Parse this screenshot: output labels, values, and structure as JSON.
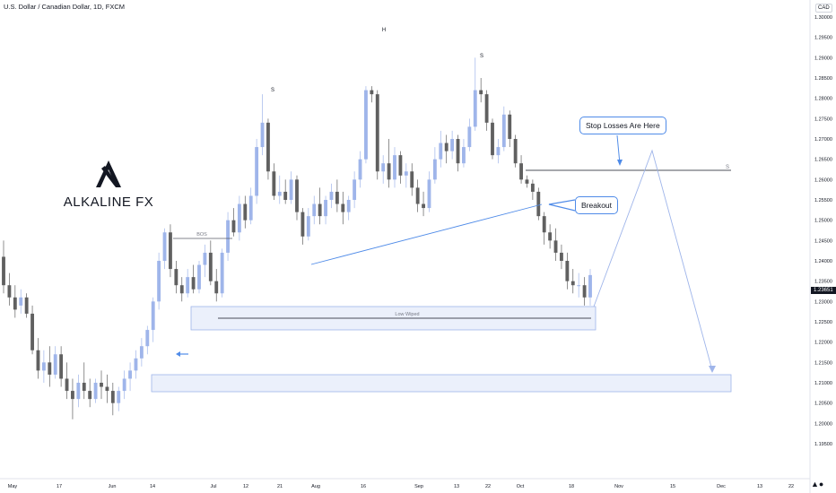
{
  "header": {
    "title": "U.S. Dollar / Canadian Dollar, 1D, FXCM",
    "currency": "CAD",
    "last_price": "1.23651"
  },
  "logo": {
    "text": "ALKALINE FX"
  },
  "callouts": {
    "stop_losses": "Stop Losses Are Here",
    "breakout": "Breakout"
  },
  "annotations": {
    "bos": "BOS",
    "low_wiped": "Low Wiped",
    "markers": [
      "S",
      "H",
      "S",
      "S"
    ]
  },
  "colors": {
    "bull": "#9fb5ea",
    "bear": "#606060",
    "accent": "#4f8be8",
    "zone": "rgba(210,222,246,0.45)",
    "zone_border": "#9fb5ea"
  },
  "chart_data": {
    "type": "candlestick",
    "symbol": "USD/CAD",
    "timeframe": "1D",
    "ylim": [
      1.1925,
      1.3025
    ],
    "y_ticks": [
      "1.30000",
      "1.29500",
      "1.29000",
      "1.28500",
      "1.28000",
      "1.27500",
      "1.27000",
      "1.26500",
      "1.26000",
      "1.25500",
      "1.25000",
      "1.24500",
      "1.24000",
      "1.23500",
      "1.23000",
      "1.22500",
      "1.22000",
      "1.21500",
      "1.21000",
      "1.20500",
      "1.20000",
      "1.19500"
    ],
    "x_ticks": [
      "May",
      "17",
      "Jun",
      "14",
      "Jul",
      "12",
      "21",
      "Aug",
      "16",
      "Sep",
      "13",
      "22",
      "Oct",
      "18",
      "Nov",
      "15",
      "Dec",
      "13",
      "22"
    ],
    "candles": [
      [
        1.241,
        1.245,
        1.232,
        1.234
      ],
      [
        1.234,
        1.237,
        1.229,
        1.231
      ],
      [
        1.231,
        1.234,
        1.226,
        1.228
      ],
      [
        1.229,
        1.233,
        1.227,
        1.231
      ],
      [
        1.231,
        1.232,
        1.226,
        1.227
      ],
      [
        1.227,
        1.229,
        1.217,
        1.218
      ],
      [
        1.218,
        1.221,
        1.211,
        1.213
      ],
      [
        1.213,
        1.218,
        1.21,
        1.215
      ],
      [
        1.215,
        1.219,
        1.209,
        1.212
      ],
      [
        1.212,
        1.219,
        1.211,
        1.217
      ],
      [
        1.217,
        1.219,
        1.209,
        1.211
      ],
      [
        1.211,
        1.215,
        1.206,
        1.208
      ],
      [
        1.208,
        1.211,
        1.201,
        1.206
      ],
      [
        1.206,
        1.212,
        1.204,
        1.21
      ],
      [
        1.21,
        1.215,
        1.206,
        1.208
      ],
      [
        1.208,
        1.211,
        1.204,
        1.206
      ],
      [
        1.206,
        1.211,
        1.205,
        1.21
      ],
      [
        1.21,
        1.213,
        1.206,
        1.209
      ],
      [
        1.209,
        1.212,
        1.205,
        1.208
      ],
      [
        1.208,
        1.21,
        1.202,
        1.205
      ],
      [
        1.205,
        1.209,
        1.203,
        1.208
      ],
      [
        1.208,
        1.213,
        1.206,
        1.211
      ],
      [
        1.211,
        1.215,
        1.208,
        1.213
      ],
      [
        1.213,
        1.218,
        1.211,
        1.216
      ],
      [
        1.216,
        1.221,
        1.214,
        1.219
      ],
      [
        1.219,
        1.224,
        1.217,
        1.223
      ],
      [
        1.223,
        1.231,
        1.22,
        1.23
      ],
      [
        1.23,
        1.242,
        1.228,
        1.24
      ],
      [
        1.24,
        1.248,
        1.238,
        1.247
      ],
      [
        1.247,
        1.249,
        1.236,
        1.238
      ],
      [
        1.238,
        1.24,
        1.232,
        1.234
      ],
      [
        1.234,
        1.236,
        1.23,
        1.232
      ],
      [
        1.232,
        1.238,
        1.231,
        1.236
      ],
      [
        1.236,
        1.239,
        1.232,
        1.233
      ],
      [
        1.233,
        1.24,
        1.232,
        1.239
      ],
      [
        1.239,
        1.244,
        1.236,
        1.242
      ],
      [
        1.242,
        1.245,
        1.234,
        1.235
      ],
      [
        1.235,
        1.238,
        1.23,
        1.232
      ],
      [
        1.232,
        1.243,
        1.231,
        1.242
      ],
      [
        1.242,
        1.252,
        1.24,
        1.25
      ],
      [
        1.25,
        1.253,
        1.246,
        1.247
      ],
      [
        1.247,
        1.256,
        1.245,
        1.254
      ],
      [
        1.254,
        1.256,
        1.248,
        1.25
      ],
      [
        1.25,
        1.258,
        1.249,
        1.256
      ],
      [
        1.256,
        1.27,
        1.254,
        1.268
      ],
      [
        1.268,
        1.281,
        1.266,
        1.274
      ],
      [
        1.274,
        1.275,
        1.26,
        1.262
      ],
      [
        1.262,
        1.264,
        1.255,
        1.256
      ],
      [
        1.256,
        1.261,
        1.254,
        1.257
      ],
      [
        1.257,
        1.26,
        1.254,
        1.255
      ],
      [
        1.255,
        1.262,
        1.254,
        1.26
      ],
      [
        1.26,
        1.261,
        1.25,
        1.252
      ],
      [
        1.252,
        1.253,
        1.244,
        1.246
      ],
      [
        1.246,
        1.253,
        1.245,
        1.251
      ],
      [
        1.251,
        1.256,
        1.249,
        1.254
      ],
      [
        1.254,
        1.258,
        1.249,
        1.251
      ],
      [
        1.251,
        1.256,
        1.249,
        1.255
      ],
      [
        1.255,
        1.259,
        1.253,
        1.257
      ],
      [
        1.257,
        1.26,
        1.252,
        1.254
      ],
      [
        1.254,
        1.257,
        1.249,
        1.252
      ],
      [
        1.252,
        1.256,
        1.25,
        1.255
      ],
      [
        1.255,
        1.262,
        1.253,
        1.26
      ],
      [
        1.26,
        1.267,
        1.258,
        1.265
      ],
      [
        1.265,
        1.283,
        1.264,
        1.282
      ],
      [
        1.282,
        1.283,
        1.279,
        1.281
      ],
      [
        1.281,
        1.282,
        1.26,
        1.262
      ],
      [
        1.262,
        1.266,
        1.259,
        1.264
      ],
      [
        1.264,
        1.27,
        1.258,
        1.26
      ],
      [
        1.26,
        1.268,
        1.258,
        1.266
      ],
      [
        1.266,
        1.267,
        1.259,
        1.261
      ],
      [
        1.261,
        1.264,
        1.258,
        1.262
      ],
      [
        1.262,
        1.264,
        1.256,
        1.258
      ],
      [
        1.258,
        1.26,
        1.252,
        1.254
      ],
      [
        1.254,
        1.257,
        1.251,
        1.253
      ],
      [
        1.253,
        1.262,
        1.252,
        1.26
      ],
      [
        1.26,
        1.268,
        1.259,
        1.265
      ],
      [
        1.265,
        1.272,
        1.263,
        1.269
      ],
      [
        1.269,
        1.271,
        1.264,
        1.267
      ],
      [
        1.267,
        1.272,
        1.265,
        1.27
      ],
      [
        1.27,
        1.271,
        1.262,
        1.264
      ],
      [
        1.264,
        1.27,
        1.263,
        1.268
      ],
      [
        1.268,
        1.275,
        1.267,
        1.273
      ],
      [
        1.273,
        1.29,
        1.272,
        1.282
      ],
      [
        1.282,
        1.285,
        1.279,
        1.281
      ],
      [
        1.281,
        1.282,
        1.272,
        1.274
      ],
      [
        1.274,
        1.275,
        1.265,
        1.266
      ],
      [
        1.266,
        1.27,
        1.264,
        1.268
      ],
      [
        1.268,
        1.278,
        1.267,
        1.276
      ],
      [
        1.276,
        1.277,
        1.268,
        1.27
      ],
      [
        1.27,
        1.271,
        1.263,
        1.264
      ],
      [
        1.264,
        1.266,
        1.259,
        1.26
      ],
      [
        1.26,
        1.261,
        1.258,
        1.259
      ],
      [
        1.259,
        1.26,
        1.255,
        1.257
      ],
      [
        1.257,
        1.258,
        1.25,
        1.251
      ],
      [
        1.251,
        1.252,
        1.244,
        1.247
      ],
      [
        1.247,
        1.249,
        1.243,
        1.245
      ],
      [
        1.245,
        1.248,
        1.24,
        1.242
      ],
      [
        1.242,
        1.244,
        1.238,
        1.24
      ],
      [
        1.24,
        1.242,
        1.233,
        1.235
      ],
      [
        1.235,
        1.238,
        1.232,
        1.234
      ],
      [
        1.234,
        1.237,
        1.231,
        1.234
      ],
      [
        1.234,
        1.236,
        1.229,
        1.231
      ],
      [
        1.231,
        1.238,
        1.229,
        1.2365
      ]
    ]
  }
}
